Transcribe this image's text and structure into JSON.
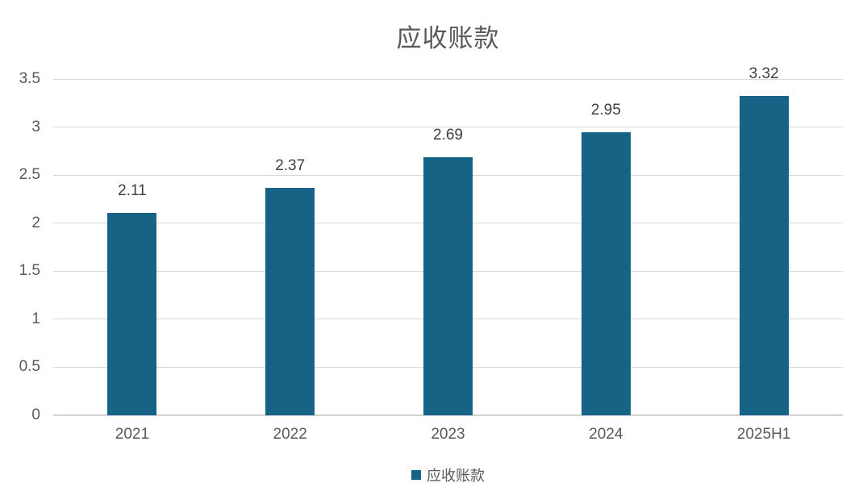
{
  "chart_data": {
    "type": "bar",
    "title": "应收账款",
    "categories": [
      "2021",
      "2022",
      "2023",
      "2024",
      "2025H1"
    ],
    "series": [
      {
        "name": "应收账款",
        "values": [
          2.11,
          2.37,
          2.69,
          2.95,
          3.32
        ]
      }
    ],
    "data_labels": [
      "2.11",
      "2.37",
      "2.69",
      "2.95",
      "3.32"
    ],
    "xlabel": "",
    "ylabel": "",
    "ylim": [
      0,
      3.5
    ],
    "yticks": [
      "0",
      "0.5",
      "1",
      "1.5",
      "2",
      "2.5",
      "3",
      "3.5"
    ],
    "grid": "horizontal",
    "legend": {
      "position": "bottom",
      "entries": [
        "应收账款"
      ]
    },
    "colors": {
      "bar": "#176385",
      "grid": "#d9d9d9",
      "axis": "#d2d2d2",
      "title_text": "#595959",
      "tick_text": "#595959",
      "data_label_text": "#404040",
      "background": "#ffffff"
    }
  }
}
